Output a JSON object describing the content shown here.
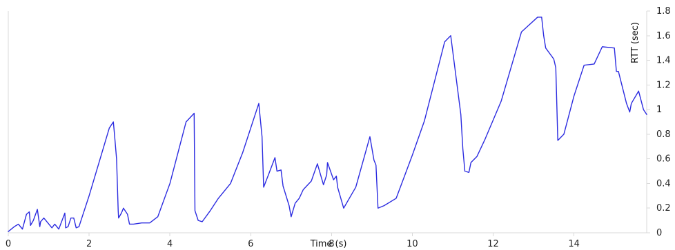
{
  "chart_data": {
    "type": "line",
    "title": "",
    "xlabel": "Time (s)",
    "ylabel": "RTT (sec)",
    "xlim": [
      0,
      15.8
    ],
    "ylim": [
      0,
      1.8
    ],
    "x_ticks": [
      0,
      2,
      4,
      6,
      8,
      10,
      12,
      14
    ],
    "y_ticks": [
      0,
      0.2,
      0.4,
      0.6,
      0.8,
      1,
      1.2,
      1.4,
      1.6,
      1.8
    ],
    "x_tick_labels": [
      "0",
      "2",
      "4",
      "6",
      "8",
      "10",
      "12",
      "14"
    ],
    "y_tick_labels": [
      "0",
      "0.2",
      "0.4",
      "0.6",
      "0.8",
      "1",
      "1.2",
      "1.4",
      "1.6",
      "1.8"
    ],
    "grid": false,
    "legend": "none",
    "colors": {
      "series": "#2b2be0",
      "axis": "#d9d9d9",
      "text": "#222222"
    },
    "series": [
      {
        "x": [
          0.0,
          0.15,
          0.25,
          0.35,
          0.45,
          0.52,
          0.55,
          0.62,
          0.72,
          0.78,
          0.8,
          0.88,
          0.98,
          1.08,
          1.15,
          1.25,
          1.4,
          1.42,
          1.48,
          1.55,
          1.62,
          1.68,
          1.75,
          2.0,
          2.5,
          2.6,
          2.62,
          2.68,
          2.72,
          2.73,
          2.8,
          2.85,
          2.95,
          3.0,
          3.1,
          3.3,
          3.5,
          3.7,
          4.0,
          4.4,
          4.6,
          4.62,
          4.7,
          4.8,
          5.0,
          5.2,
          5.5,
          5.8,
          6.2,
          6.28,
          6.32,
          6.45,
          6.6,
          6.65,
          6.75,
          6.8,
          6.95,
          7.0,
          7.1,
          7.2,
          7.3,
          7.5,
          7.65,
          7.8,
          7.88,
          7.9,
          8.05,
          8.12,
          8.15,
          8.3,
          8.6,
          8.95,
          9.05,
          9.1,
          9.15,
          9.3,
          9.6,
          10.0,
          10.3,
          10.8,
          10.95,
          11.2,
          11.25,
          11.3,
          11.4,
          11.45,
          11.6,
          11.8,
          12.2,
          12.7,
          13.1,
          13.2,
          13.25,
          13.3,
          13.5,
          13.55,
          13.6,
          13.75,
          14.0,
          14.25,
          14.5,
          14.7,
          15.0,
          15.05,
          15.1,
          15.3,
          15.38,
          15.42,
          15.6,
          15.72,
          15.8
        ],
        "y": [
          0.01,
          0.05,
          0.07,
          0.03,
          0.15,
          0.17,
          0.06,
          0.1,
          0.19,
          0.05,
          0.09,
          0.12,
          0.08,
          0.04,
          0.07,
          0.03,
          0.16,
          0.04,
          0.05,
          0.12,
          0.12,
          0.04,
          0.05,
          0.3,
          0.85,
          0.9,
          0.83,
          0.6,
          0.18,
          0.12,
          0.16,
          0.2,
          0.15,
          0.07,
          0.07,
          0.08,
          0.08,
          0.13,
          0.4,
          0.9,
          0.97,
          0.18,
          0.1,
          0.09,
          0.18,
          0.28,
          0.4,
          0.65,
          1.05,
          0.78,
          0.37,
          0.48,
          0.61,
          0.5,
          0.51,
          0.38,
          0.22,
          0.13,
          0.24,
          0.28,
          0.35,
          0.42,
          0.56,
          0.39,
          0.47,
          0.57,
          0.43,
          0.46,
          0.37,
          0.2,
          0.37,
          0.78,
          0.59,
          0.55,
          0.2,
          0.22,
          0.28,
          0.63,
          0.91,
          1.55,
          1.6,
          0.96,
          0.68,
          0.5,
          0.49,
          0.57,
          0.62,
          0.76,
          1.07,
          1.63,
          1.75,
          1.75,
          1.6,
          1.5,
          1.41,
          1.34,
          0.75,
          0.8,
          1.11,
          1.36,
          1.37,
          1.51,
          1.5,
          1.31,
          1.31,
          1.05,
          0.98,
          1.05,
          1.15,
          1.0,
          0.96
        ]
      }
    ]
  }
}
